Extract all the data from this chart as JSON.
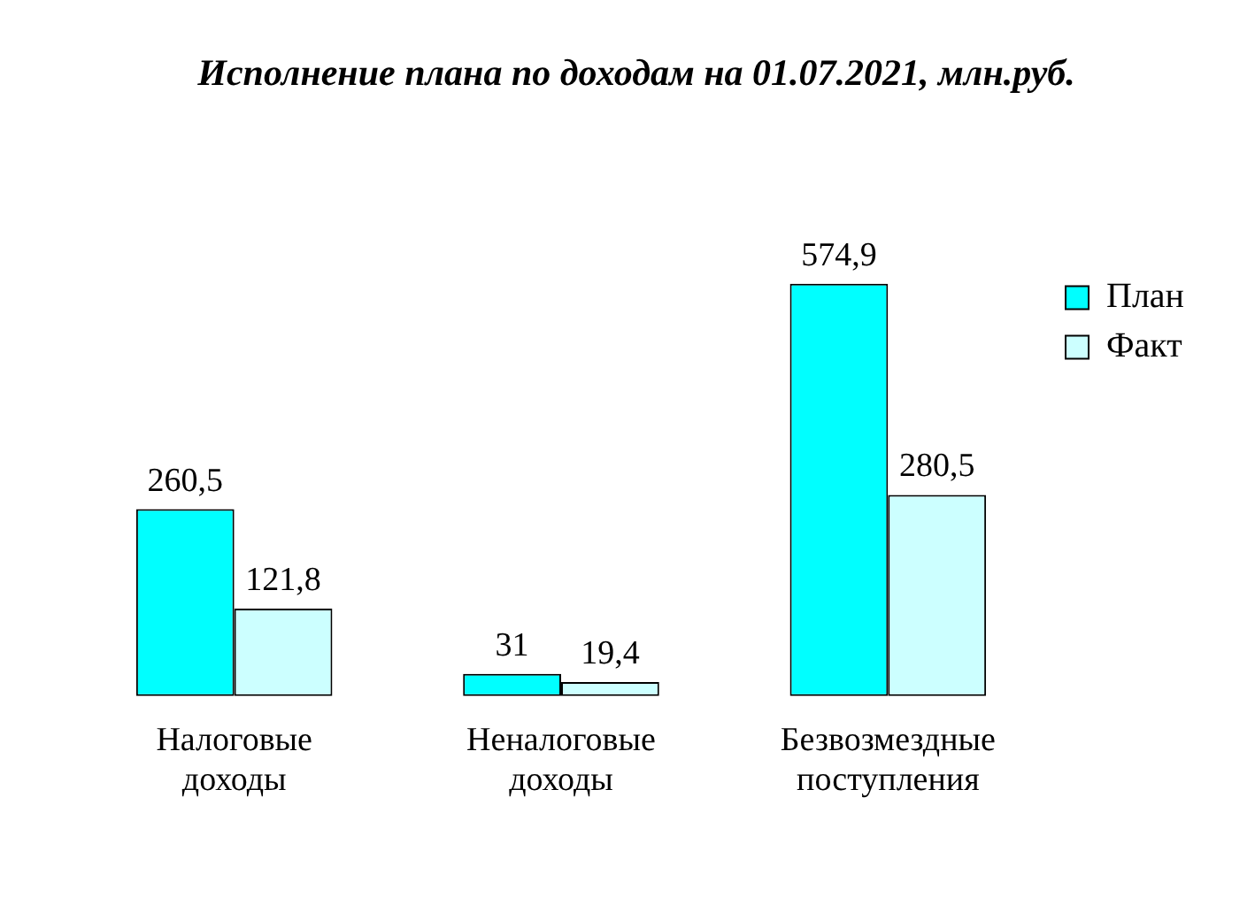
{
  "chart_data": {
    "type": "bar",
    "title": "Исполнение плана по доходам на 01.07.2021, млн.руб.",
    "categories": [
      "Налоговые доходы",
      "Неналоговые доходы",
      "Безвозмездные поступления"
    ],
    "series": [
      {
        "name": "План",
        "color": "#00ffff",
        "values": [
          260.5,
          31,
          574.9
        ],
        "value_labels": [
          "260,5",
          "31",
          "574,9"
        ]
      },
      {
        "name": "Факт",
        "color": "#ccffff",
        "values": [
          121.8,
          19.4,
          280.5
        ],
        "value_labels": [
          "121,8",
          "19,4",
          "280,5"
        ]
      }
    ],
    "grid": false,
    "legend": "right"
  }
}
